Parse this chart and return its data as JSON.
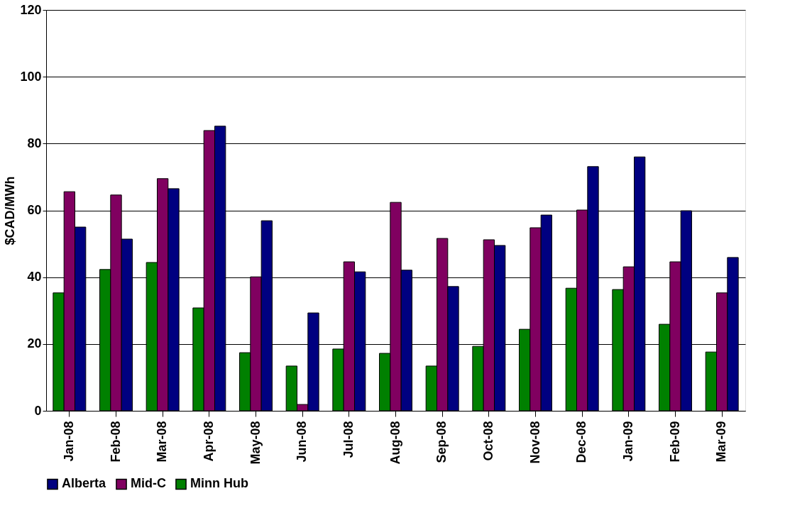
{
  "chart_data": {
    "type": "bar",
    "ylabel": "$CAD/MWh",
    "categories": [
      "Jan-08",
      "Feb-08",
      "Mar-08",
      "Apr-08",
      "May-08",
      "Jun-08",
      "Jul-08",
      "Aug-08",
      "Sep-08",
      "Oct-08",
      "Nov-08",
      "Dec-08",
      "Jan-09",
      "Feb-09",
      "Mar-09"
    ],
    "series": [
      {
        "name": "Minn Hub",
        "color": "#008000",
        "values": [
          35.3,
          42.3,
          44.4,
          30.8,
          17.4,
          13.4,
          18.5,
          17.2,
          13.4,
          19.3,
          24.4,
          36.7,
          36.3,
          25.9,
          17.6
        ]
      },
      {
        "name": "Mid-C",
        "color": "#800060",
        "values": [
          65.6,
          64.6,
          69.5,
          83.9,
          40.1,
          1.9,
          44.6,
          62.4,
          51.6,
          51.2,
          54.8,
          60.1,
          43.1,
          44.6,
          35.3
        ]
      },
      {
        "name": "Alberta",
        "color": "#000080",
        "values": [
          55.0,
          51.4,
          66.5,
          85.2,
          56.9,
          29.3,
          41.6,
          42.1,
          37.2,
          49.5,
          58.6,
          73.1,
          76.0,
          59.9,
          45.9
        ]
      }
    ],
    "ylim": [
      0,
      120
    ],
    "yticks": [
      0,
      20,
      40,
      60,
      80,
      100,
      120
    ],
    "grid": "y",
    "legend": "bottom"
  }
}
